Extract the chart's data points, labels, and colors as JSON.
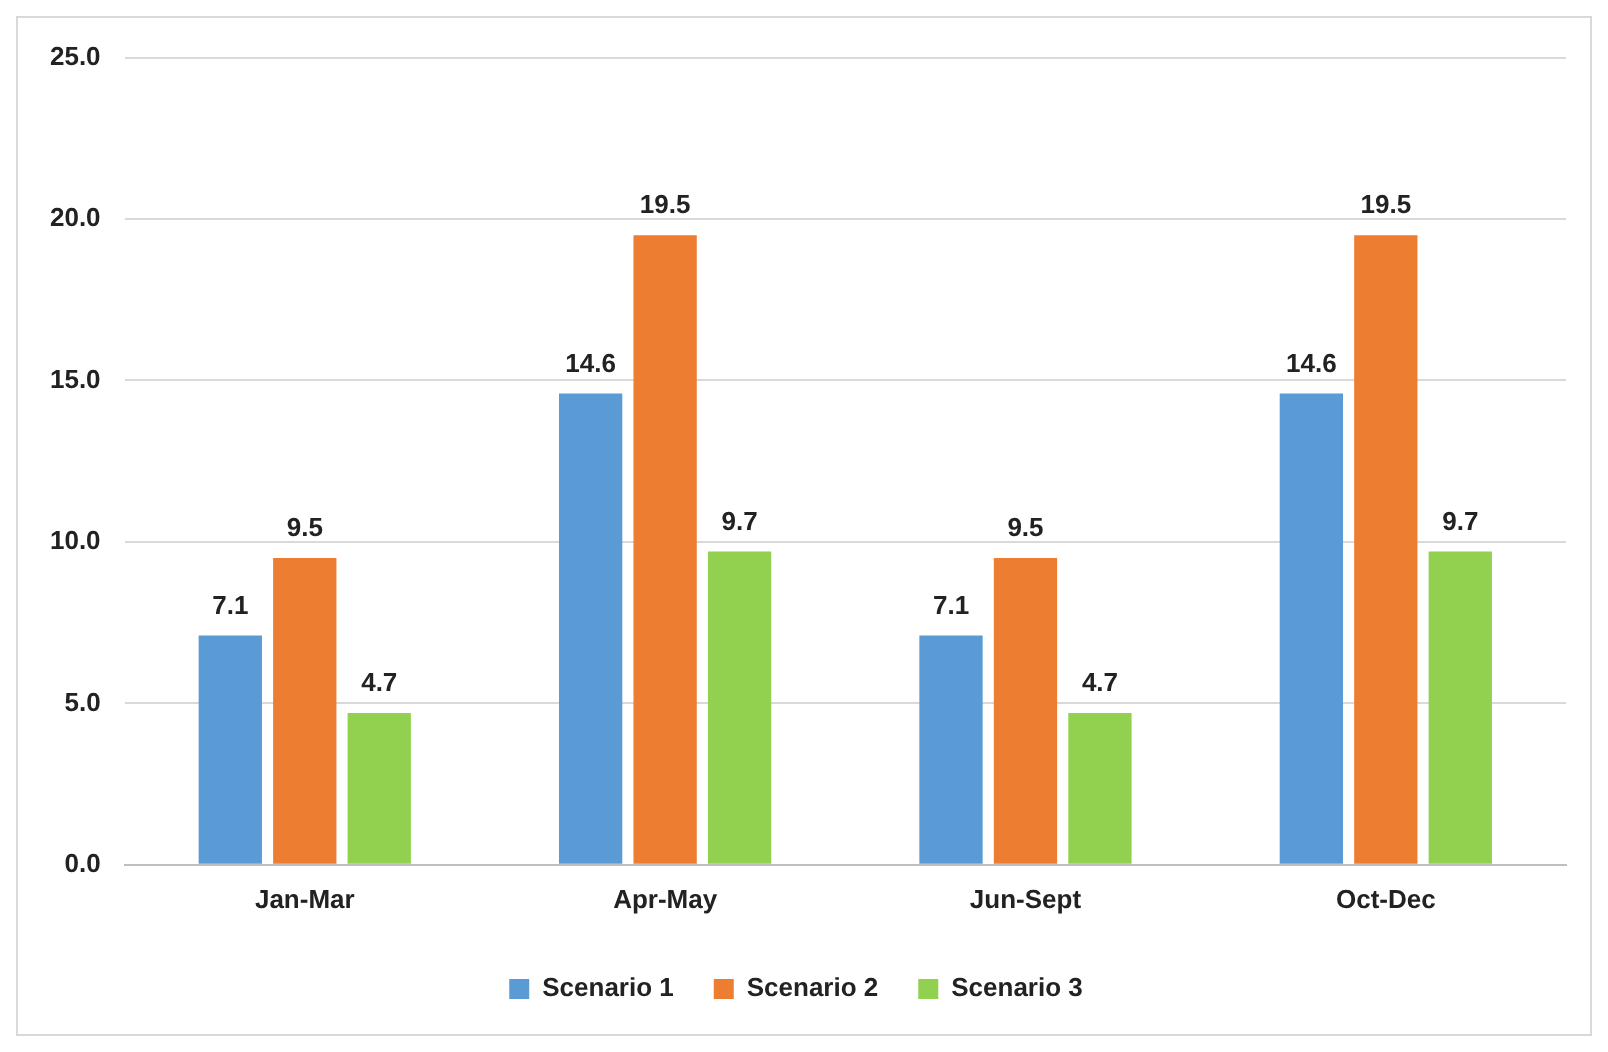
{
  "chart_data": {
    "type": "bar",
    "categories": [
      "Jan-Mar",
      "Apr-May",
      "Jun-Sept",
      "Oct-Dec"
    ],
    "series": [
      {
        "name": "Scenario 1",
        "color": "#5b9bd5",
        "values": [
          7.1,
          14.6,
          7.1,
          14.6
        ]
      },
      {
        "name": "Scenario 2",
        "color": "#ed7d31",
        "values": [
          9.5,
          19.5,
          9.5,
          19.5
        ]
      },
      {
        "name": "Scenario 3",
        "color": "#92d050",
        "values": [
          4.7,
          9.7,
          4.7,
          9.7
        ]
      }
    ],
    "ylim": [
      0,
      25
    ],
    "yticks": [
      {
        "value": 0,
        "label": "0.0"
      },
      {
        "value": 5,
        "label": "5.0"
      },
      {
        "value": 10,
        "label": "10.0"
      },
      {
        "value": 15,
        "label": "15.0"
      },
      {
        "value": 20,
        "label": "20.0"
      },
      {
        "value": 25,
        "label": "25.0"
      }
    ],
    "grid": "y",
    "legend": "bottom",
    "data_labels": true
  }
}
